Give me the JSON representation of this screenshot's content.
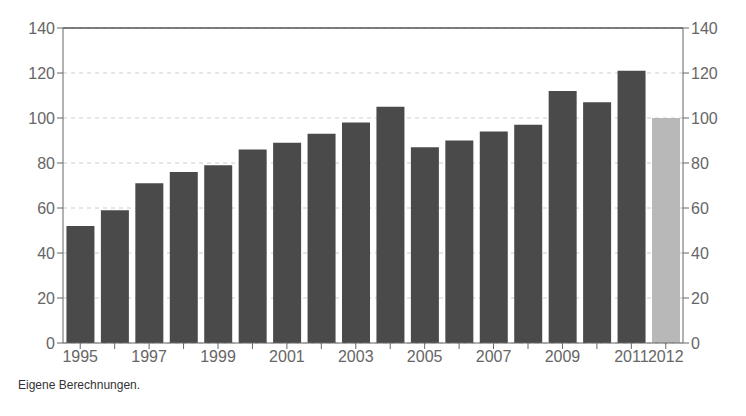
{
  "chart_data": {
    "type": "bar",
    "categories": [
      "1995",
      null,
      "1997",
      null,
      "1999",
      null,
      "2001",
      null,
      "2003",
      null,
      "2005",
      null,
      "2007",
      null,
      "2009",
      null,
      "2011",
      "2012"
    ],
    "values": [
      52,
      59,
      71,
      76,
      79,
      86,
      89,
      93,
      98,
      105,
      87,
      90,
      94,
      97,
      112,
      107,
      121,
      100
    ],
    "colors": [
      "#4a4a4a",
      "#4a4a4a",
      "#4a4a4a",
      "#4a4a4a",
      "#4a4a4a",
      "#4a4a4a",
      "#4a4a4a",
      "#4a4a4a",
      "#4a4a4a",
      "#4a4a4a",
      "#4a4a4a",
      "#4a4a4a",
      "#4a4a4a",
      "#4a4a4a",
      "#4a4a4a",
      "#4a4a4a",
      "#4a4a4a",
      "#b8b8b8"
    ],
    "ylim": [
      0,
      140
    ],
    "yticks": [
      0,
      20,
      40,
      60,
      80,
      100,
      120,
      140
    ],
    "grid": true,
    "annotations": [
      "Eigene Berechnungen."
    ]
  }
}
